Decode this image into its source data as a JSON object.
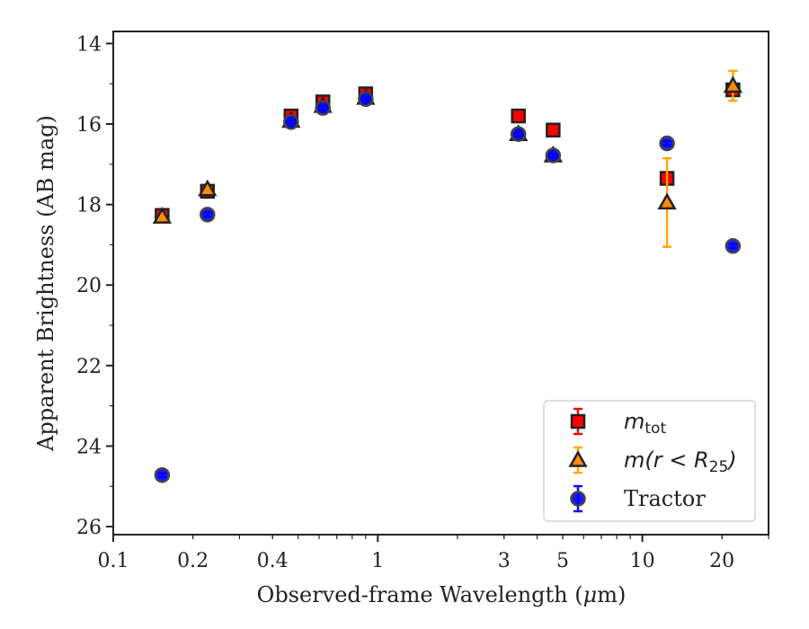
{
  "chart_data": {
    "type": "scatter",
    "xlabel": "Observed-frame Wavelength (μm)",
    "ylabel": "Apparent Brightness (AB mag)",
    "xscale": "log",
    "xlim": [
      0.1,
      30
    ],
    "ylim": [
      26.2,
      13.7
    ],
    "y_inverted": true,
    "xticks": [
      0.1,
      0.2,
      0.4,
      1,
      3,
      5,
      10,
      20
    ],
    "xtick_labels": [
      "0.1",
      "0.2",
      "0.4",
      "1",
      "3",
      "5",
      "10",
      "20"
    ],
    "yticks": [
      14,
      16,
      18,
      20,
      22,
      24,
      26
    ],
    "ytick_labels": [
      "14",
      "16",
      "18",
      "20",
      "22",
      "24",
      "26"
    ],
    "grid": false,
    "legend_position": "bottom-right",
    "series": [
      {
        "name": "m_tot",
        "legend_label": {
          "base": "m",
          "sub": "tot"
        },
        "marker": "square",
        "color": "#ff0000",
        "edge_color": "#222222",
        "error_color": "#ff0000",
        "points": [
          {
            "x": 0.153,
            "y": 18.27,
            "err": 0.05
          },
          {
            "x": 0.227,
            "y": 17.67,
            "err": 0.05
          },
          {
            "x": 0.47,
            "y": 15.8,
            "err": 0.05
          },
          {
            "x": 0.62,
            "y": 15.45,
            "err": 0.05
          },
          {
            "x": 0.9,
            "y": 15.25,
            "err": 0.05
          },
          {
            "x": 3.4,
            "y": 15.8,
            "err": 0.05
          },
          {
            "x": 4.6,
            "y": 16.15,
            "err": 0.05
          },
          {
            "x": 12.4,
            "y": 17.35,
            "err": 0.05
          },
          {
            "x": 22,
            "y": 15.15,
            "err": 0.05
          }
        ]
      },
      {
        "name": "m(r<R_25)",
        "legend_label": {
          "pre": "m(r < R",
          "sub": "25",
          "post": ")"
        },
        "marker": "triangle",
        "color": "#ff8c00",
        "edge_color": "#222222",
        "error_color": "#ffa500",
        "points": [
          {
            "x": 0.153,
            "y": 18.3,
            "err": 0.05
          },
          {
            "x": 0.227,
            "y": 17.62,
            "err": 0.05
          },
          {
            "x": 0.47,
            "y": 15.92,
            "err": 0.05
          },
          {
            "x": 0.62,
            "y": 15.55,
            "err": 0.05
          },
          {
            "x": 0.9,
            "y": 15.35,
            "err": 0.05
          },
          {
            "x": 3.4,
            "y": 16.25,
            "err": 0.05
          },
          {
            "x": 4.6,
            "y": 16.78,
            "err": 0.05
          },
          {
            "x": 12.4,
            "y": 17.95,
            "err": 1.1
          },
          {
            "x": 22,
            "y": 15.05,
            "err": 0.37
          }
        ]
      },
      {
        "name": "Tractor",
        "legend_label": {
          "text": "Tractor"
        },
        "marker": "circle",
        "color": "#0000ff",
        "edge_color": "#444444",
        "error_color": "#0000ff",
        "points": [
          {
            "x": 0.153,
            "y": 24.72,
            "err": 0.05
          },
          {
            "x": 0.227,
            "y": 18.25,
            "err": 0.05
          },
          {
            "x": 0.47,
            "y": 15.95,
            "err": 0.05
          },
          {
            "x": 0.62,
            "y": 15.6,
            "err": 0.05
          },
          {
            "x": 0.9,
            "y": 15.38,
            "err": 0.05
          },
          {
            "x": 3.4,
            "y": 16.25,
            "err": 0.05
          },
          {
            "x": 4.6,
            "y": 16.78,
            "err": 0.05
          },
          {
            "x": 12.4,
            "y": 16.48,
            "err": 0.05
          },
          {
            "x": 22,
            "y": 19.03,
            "err": 0.05
          }
        ]
      }
    ]
  }
}
